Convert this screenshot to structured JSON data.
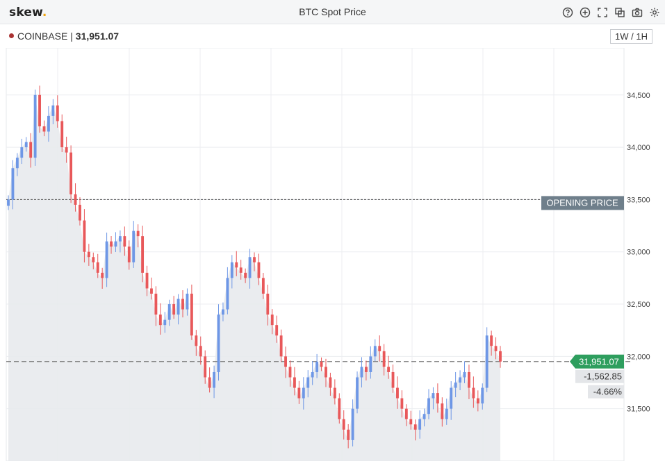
{
  "header": {
    "logo": "skew",
    "logo_dot": ".",
    "title": "BTC Spot Price"
  },
  "toolbar": {
    "icons": [
      "help-icon",
      "add-icon",
      "fullscreen-icon",
      "layers-icon",
      "camera-icon",
      "settings-icon"
    ]
  },
  "sub": {
    "source": "COINBASE",
    "separator": " | ",
    "price": "31,951.07",
    "timeframe": "1W / 1H"
  },
  "colors": {
    "up": "#6e97e6",
    "down": "#e8585a",
    "last_price_bg": "#2e9e5e",
    "opening_bg": "#6f7f8b",
    "area": "#e8eaed",
    "dot": "#a33333"
  },
  "chart_data": {
    "type": "candlestick",
    "title": "BTC Spot Price",
    "source": "COINBASE",
    "last_price": 31951.07,
    "opening_price": 33500,
    "change": "-1,562.85",
    "change_pct": "-4.66%",
    "labels": {
      "last": "31,951.07",
      "opening": "OPENING PRICE"
    },
    "y_ticks": [
      31500,
      32000,
      32500,
      33000,
      33500,
      34000,
      34500
    ],
    "y_tick_labels": [
      "31,500",
      "32,000",
      "32,500",
      "33,000",
      "33,500",
      "34,000",
      "34,500"
    ],
    "ylim": [
      31000,
      34950
    ],
    "grid": true,
    "closes": [
      33500,
      33800,
      33900,
      34000,
      34050,
      33900,
      34500,
      34200,
      34150,
      34300,
      34400,
      34250,
      34000,
      33950,
      33550,
      33450,
      33300,
      33000,
      32950,
      32900,
      32800,
      32750,
      33100,
      33050,
      33100,
      33150,
      33050,
      32900,
      33200,
      33150,
      32800,
      32650,
      32600,
      32400,
      32300,
      32350,
      32500,
      32400,
      32550,
      32450,
      32600,
      32200,
      32100,
      32000,
      31800,
      31700,
      31850,
      32400,
      32450,
      32750,
      32900,
      32850,
      32800,
      32750,
      32950,
      32900,
      32750,
      32600,
      32400,
      32300,
      32200,
      32000,
      31900,
      31800,
      31700,
      31600,
      31700,
      31800,
      31850,
      31950,
      31900,
      31800,
      31700,
      31600,
      31400,
      31300,
      31200,
      31500,
      31800,
      31900,
      31850,
      32000,
      32100,
      32050,
      31900,
      31850,
      31700,
      31600,
      31500,
      31400,
      31350,
      31300,
      31400,
      31450,
      31600,
      31650,
      31550,
      31400,
      31500,
      31700,
      31750,
      31800,
      31850,
      31700,
      31600,
      31550,
      31700,
      32200,
      32100,
      32050,
      31951
    ]
  }
}
